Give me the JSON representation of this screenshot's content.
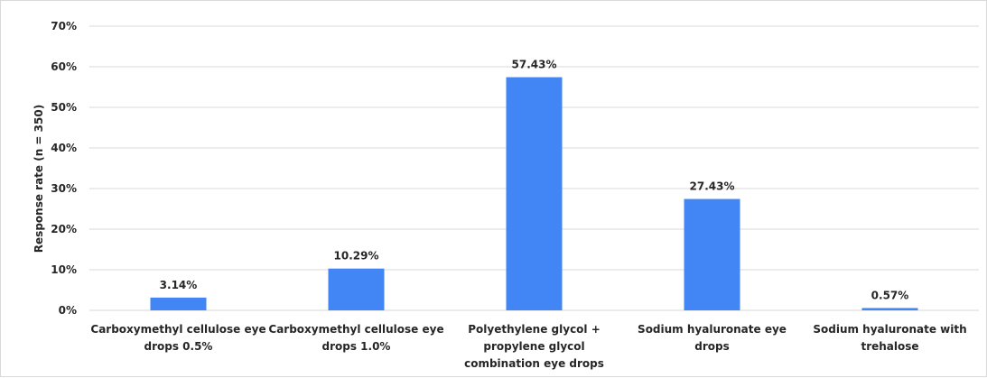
{
  "chart_data": {
    "type": "bar",
    "categories": [
      [
        "Carboxymethyl cellulose eye",
        "drops 0.5%"
      ],
      [
        "Carboxymethyl cellulose eye",
        "drops 1.0%"
      ],
      [
        "Polyethylene glycol +",
        "propylene glycol",
        "combination eye drops"
      ],
      [
        "Sodium hyaluronate eye",
        "drops"
      ],
      [
        "Sodium hyaluronate with",
        "trehalose"
      ]
    ],
    "values": [
      3.14,
      10.29,
      57.43,
      27.43,
      0.57
    ],
    "data_labels": [
      "3.14%",
      "10.29%",
      "57.43%",
      "27.43%",
      "0.57%"
    ],
    "yticks": [
      "0%",
      "10%",
      "20%",
      "30%",
      "40%",
      "50%",
      "60%",
      "70%"
    ],
    "ylim": [
      0,
      70
    ],
    "title": "",
    "xlabel": "",
    "ylabel": "Response rate (n = 350)",
    "grid": true,
    "legend": "none",
    "bar_color": "#4285f4",
    "grid_color": "#d9d9d9"
  }
}
